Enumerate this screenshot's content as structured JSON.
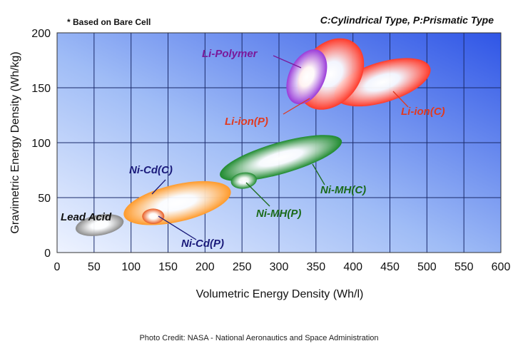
{
  "chart_data": {
    "type": "scatter",
    "note": "* Based on Bare Cell",
    "legend_note": "C:Cylindrical Type, P:Prismatic Type",
    "xlabel": "Volumetric  Energy  Density (Wh/l)",
    "ylabel": "Gravimetric  Energy  Density (Wh/kg)",
    "xlim": [
      0,
      600
    ],
    "ylim": [
      0,
      200
    ],
    "xticks": [
      0,
      50,
      100,
      150,
      200,
      250,
      300,
      350,
      400,
      450,
      500,
      550,
      600
    ],
    "yticks": [
      0,
      50,
      100,
      150,
      200
    ],
    "grid": true,
    "regions": [
      {
        "label": "Lead Acid",
        "x_range": [
          25,
          90
        ],
        "y_range": [
          15,
          35
        ],
        "color": "#8a8a8a",
        "label_color": "#111111"
      },
      {
        "label": "Ni-Cd(C)",
        "x_range": [
          90,
          235
        ],
        "y_range": [
          25,
          65
        ],
        "color": "#ff9a2a",
        "label_color": "#1a1a7a"
      },
      {
        "label": "Ni-Cd(P)",
        "x_range": [
          115,
          145
        ],
        "y_range": [
          26,
          40
        ],
        "color": "#e85a20",
        "label_color": "#1a1a7a"
      },
      {
        "label": "Ni-MH(C)",
        "x_range": [
          220,
          385
        ],
        "y_range": [
          65,
          107
        ],
        "color": "#1e8a2e",
        "label_color": "#1a6a1a"
      },
      {
        "label": "Ni-MH(P)",
        "x_range": [
          235,
          270
        ],
        "y_range": [
          58,
          73
        ],
        "color": "#1e8a2e",
        "label_color": "#1a6a1a"
      },
      {
        "label": "Li-ion(P)",
        "x_range": [
          325,
          415
        ],
        "y_range": [
          130,
          195
        ],
        "color": "#ff3a2a",
        "label_color": "#e03a20"
      },
      {
        "label": "Li-ion(C)",
        "x_range": [
          375,
          505
        ],
        "y_range": [
          133,
          177
        ],
        "color": "#ff3a2a",
        "label_color": "#e03a20"
      },
      {
        "label": "Li-Polymer",
        "x_range": [
          310,
          365
        ],
        "y_range": [
          135,
          185
        ],
        "color": "#9a3ad8",
        "label_color": "#7a1a9a"
      }
    ]
  },
  "credit": "Photo Credit: NASA - National Aeronautics and Space Administration"
}
